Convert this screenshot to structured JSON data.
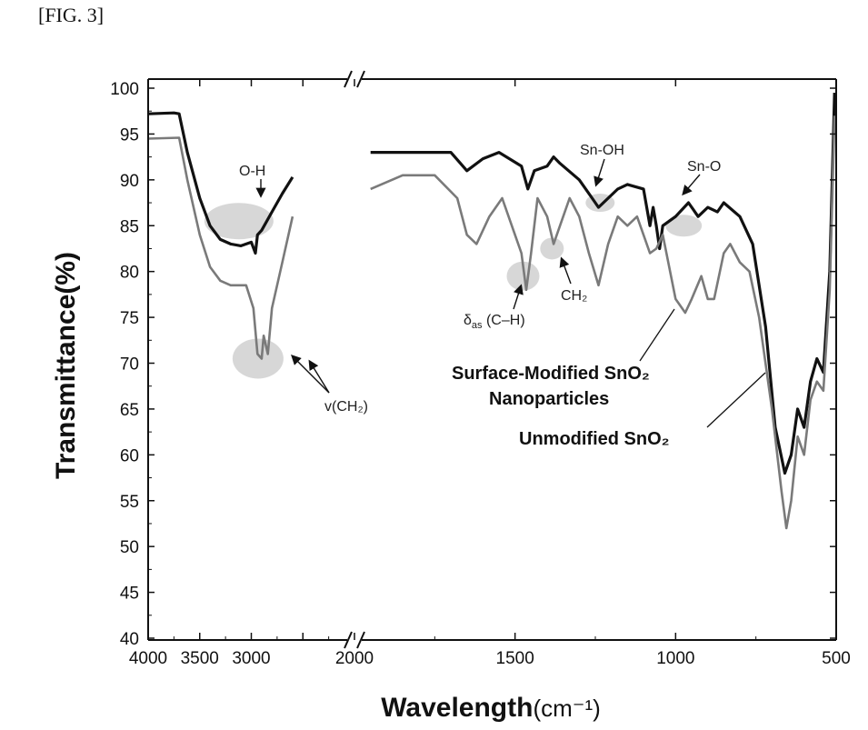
{
  "figure_label": "[FIG. 3]",
  "chart_data": {
    "type": "line",
    "xlabel": "Wavelength",
    "xlabel_unit": "(cm⁻¹)",
    "ylabel": "Transmittance(%)",
    "ylim": [
      40,
      100
    ],
    "yticks": [
      40,
      45,
      50,
      55,
      60,
      65,
      70,
      75,
      80,
      85,
      90,
      95,
      100
    ],
    "x_reversed": true,
    "x_axis_break": true,
    "x_segments": [
      [
        4000,
        2000
      ],
      [
        2000,
        500
      ]
    ],
    "xtick_labels": [
      "4000",
      "3500",
      "3000",
      "2500",
      "2000",
      "1500",
      "1000",
      "500"
    ],
    "xtick_labels_drawn": [
      "4000",
      "3500",
      "3000",
      "2000",
      "1500",
      "1000",
      "500"
    ],
    "series": [
      {
        "name": "Surface-Modified SnO₂ Nanoparticles",
        "color": "#111111",
        "points": [
          [
            4000,
            97.2
          ],
          [
            3750,
            97.3
          ],
          [
            3700,
            97.2
          ],
          [
            3620,
            93
          ],
          [
            3500,
            88
          ],
          [
            3400,
            85
          ],
          [
            3300,
            83.5
          ],
          [
            3200,
            83
          ],
          [
            3100,
            82.8
          ],
          [
            3000,
            83.2
          ],
          [
            2960,
            82
          ],
          [
            2940,
            84
          ],
          [
            2900,
            84.5
          ],
          [
            2800,
            86.5
          ],
          [
            2700,
            88.5
          ],
          [
            2600,
            90.3
          ],
          [
            1950,
            93
          ],
          [
            1800,
            93
          ],
          [
            1700,
            93
          ],
          [
            1650,
            91
          ],
          [
            1600,
            92.3
          ],
          [
            1550,
            93
          ],
          [
            1480,
            91.5
          ],
          [
            1460,
            89
          ],
          [
            1440,
            91
          ],
          [
            1400,
            91.5
          ],
          [
            1380,
            92.5
          ],
          [
            1360,
            91.8
          ],
          [
            1300,
            90
          ],
          [
            1260,
            88
          ],
          [
            1240,
            87
          ],
          [
            1210,
            88
          ],
          [
            1180,
            89
          ],
          [
            1150,
            89.5
          ],
          [
            1100,
            89
          ],
          [
            1080,
            85
          ],
          [
            1070,
            87
          ],
          [
            1060,
            85
          ],
          [
            1050,
            82.5
          ],
          [
            1040,
            85
          ],
          [
            1000,
            86
          ],
          [
            960,
            87.5
          ],
          [
            930,
            86
          ],
          [
            900,
            87
          ],
          [
            870,
            86.5
          ],
          [
            850,
            87.5
          ],
          [
            800,
            86
          ],
          [
            760,
            83
          ],
          [
            720,
            74
          ],
          [
            690,
            63
          ],
          [
            660,
            58
          ],
          [
            640,
            60
          ],
          [
            620,
            65
          ],
          [
            600,
            63
          ],
          [
            580,
            68
          ],
          [
            560,
            70.5
          ],
          [
            540,
            69
          ],
          [
            520,
            80
          ],
          [
            505,
            99.5
          ]
        ]
      },
      {
        "name": "Unmodified SnO₂",
        "color": "#7a7a7a",
        "points": [
          [
            4000,
            94.5
          ],
          [
            3700,
            94.6
          ],
          [
            3620,
            90
          ],
          [
            3500,
            84
          ],
          [
            3400,
            80.5
          ],
          [
            3300,
            79
          ],
          [
            3200,
            78.5
          ],
          [
            3050,
            78.5
          ],
          [
            2980,
            76
          ],
          [
            2940,
            71
          ],
          [
            2900,
            70.5
          ],
          [
            2880,
            73
          ],
          [
            2840,
            71
          ],
          [
            2800,
            76
          ],
          [
            2700,
            81
          ],
          [
            2600,
            86
          ],
          [
            1950,
            89
          ],
          [
            1850,
            90.5
          ],
          [
            1750,
            90.5
          ],
          [
            1680,
            88
          ],
          [
            1650,
            84
          ],
          [
            1620,
            83
          ],
          [
            1580,
            86
          ],
          [
            1540,
            88
          ],
          [
            1480,
            82
          ],
          [
            1465,
            78
          ],
          [
            1450,
            82
          ],
          [
            1430,
            88
          ],
          [
            1400,
            86
          ],
          [
            1380,
            83
          ],
          [
            1360,
            85
          ],
          [
            1330,
            88
          ],
          [
            1300,
            86
          ],
          [
            1270,
            82
          ],
          [
            1240,
            78.5
          ],
          [
            1210,
            83
          ],
          [
            1180,
            86
          ],
          [
            1150,
            85
          ],
          [
            1120,
            86
          ],
          [
            1100,
            84
          ],
          [
            1080,
            82
          ],
          [
            1060,
            82.5
          ],
          [
            1040,
            84
          ],
          [
            1000,
            77
          ],
          [
            970,
            75.5
          ],
          [
            950,
            77
          ],
          [
            920,
            79.5
          ],
          [
            900,
            77
          ],
          [
            880,
            77
          ],
          [
            850,
            82
          ],
          [
            830,
            83
          ],
          [
            800,
            81
          ],
          [
            770,
            80
          ],
          [
            740,
            75
          ],
          [
            700,
            65
          ],
          [
            670,
            56
          ],
          [
            655,
            52
          ],
          [
            640,
            55
          ],
          [
            620,
            62
          ],
          [
            600,
            60
          ],
          [
            580,
            66
          ],
          [
            560,
            68
          ],
          [
            540,
            67
          ],
          [
            520,
            78
          ],
          [
            505,
            97
          ]
        ]
      }
    ],
    "annotations": {
      "oh": "O-H",
      "snoh": "Sn-OH",
      "sno": "Sn-O",
      "ch2": "CH₂",
      "das_delta": "δ",
      "das_sub": "as",
      "das_rest": " (C–H)",
      "vch2": "v(CH₂)"
    },
    "legend_labels": {
      "modified_line1": "Surface-Modified SnO₂",
      "modified_line2": "Nanoparticles",
      "unmodified": "Unmodified SnO₂"
    }
  }
}
